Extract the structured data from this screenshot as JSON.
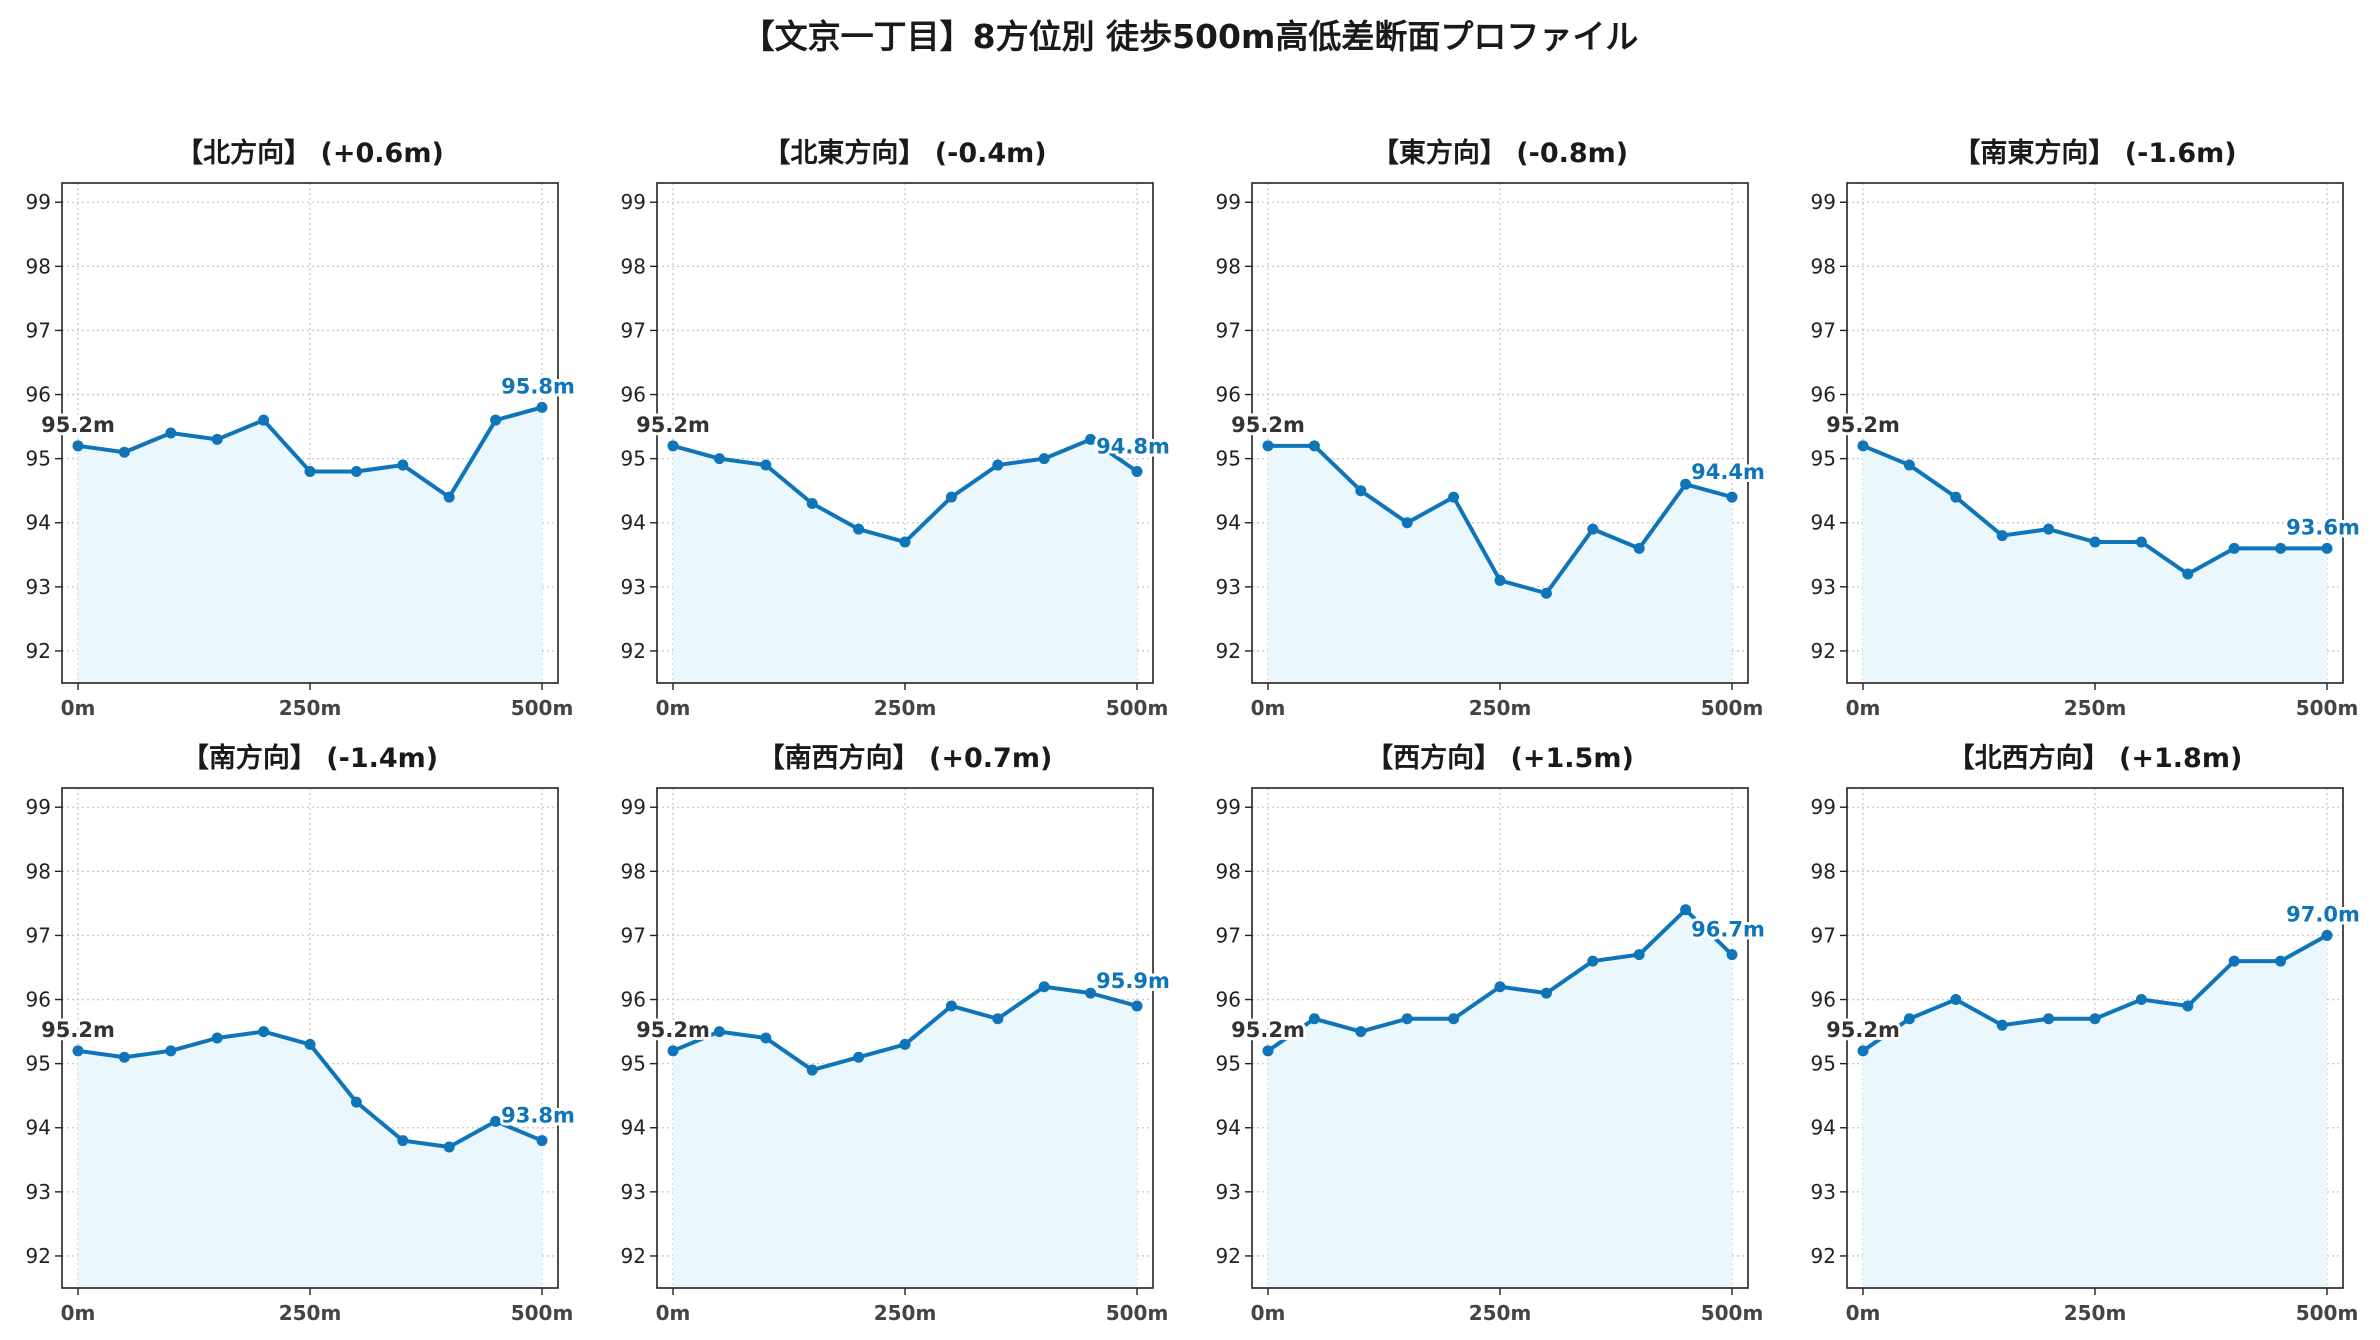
{
  "title": "【文京一丁目】8方位別 徒歩500m高低差断面プロファイル",
  "colors": {
    "line": "#0f75b8",
    "fill": "#eaf7fc",
    "grid": "#c8c8c8",
    "axis": "#222222"
  },
  "chart_data": [
    {
      "type": "area",
      "title": "【北方向】 (+0.6m)",
      "x": [
        0,
        50,
        100,
        150,
        200,
        250,
        300,
        350,
        400,
        450,
        500
      ],
      "values": [
        95.2,
        95.1,
        95.4,
        95.3,
        95.6,
        94.8,
        94.8,
        94.9,
        94.4,
        95.6,
        95.8
      ],
      "xticks": [
        "0m",
        "250m",
        "500m"
      ],
      "ylim": [
        91.5,
        99.3
      ],
      "yticks": [
        92,
        93,
        94,
        95,
        96,
        97,
        98,
        99
      ],
      "start_label": "95.2m",
      "end_label": "95.8m"
    },
    {
      "type": "area",
      "title": "【北東方向】 (-0.4m)",
      "x": [
        0,
        50,
        100,
        150,
        200,
        250,
        300,
        350,
        400,
        450,
        500
      ],
      "values": [
        95.2,
        95.0,
        94.9,
        94.3,
        93.9,
        93.7,
        94.4,
        94.9,
        95.0,
        95.3,
        94.8
      ],
      "xticks": [
        "0m",
        "250m",
        "500m"
      ],
      "ylim": [
        91.5,
        99.3
      ],
      "yticks": [
        92,
        93,
        94,
        95,
        96,
        97,
        98,
        99
      ],
      "start_label": "95.2m",
      "end_label": "94.8m"
    },
    {
      "type": "area",
      "title": "【東方向】 (-0.8m)",
      "x": [
        0,
        50,
        100,
        150,
        200,
        250,
        300,
        350,
        400,
        450,
        500
      ],
      "values": [
        95.2,
        95.2,
        94.5,
        94.0,
        94.4,
        93.1,
        92.9,
        93.9,
        93.6,
        94.6,
        94.4
      ],
      "xticks": [
        "0m",
        "250m",
        "500m"
      ],
      "ylim": [
        91.5,
        99.3
      ],
      "yticks": [
        92,
        93,
        94,
        95,
        96,
        97,
        98,
        99
      ],
      "start_label": "95.2m",
      "end_label": "94.4m"
    },
    {
      "type": "area",
      "title": "【南東方向】 (-1.6m)",
      "x": [
        0,
        50,
        100,
        150,
        200,
        250,
        300,
        350,
        400,
        450,
        500
      ],
      "values": [
        95.2,
        94.9,
        94.4,
        93.8,
        93.9,
        93.7,
        93.7,
        93.2,
        93.6,
        93.6,
        93.6
      ],
      "xticks": [
        "0m",
        "250m",
        "500m"
      ],
      "ylim": [
        91.5,
        99.3
      ],
      "yticks": [
        92,
        93,
        94,
        95,
        96,
        97,
        98,
        99
      ],
      "start_label": "95.2m",
      "end_label": "93.6m"
    },
    {
      "type": "area",
      "title": "【南方向】 (-1.4m)",
      "x": [
        0,
        50,
        100,
        150,
        200,
        250,
        300,
        350,
        400,
        450,
        500
      ],
      "values": [
        95.2,
        95.1,
        95.2,
        95.4,
        95.5,
        95.3,
        94.4,
        93.8,
        93.7,
        94.1,
        93.8
      ],
      "xticks": [
        "0m",
        "250m",
        "500m"
      ],
      "ylim": [
        91.5,
        99.3
      ],
      "yticks": [
        92,
        93,
        94,
        95,
        96,
        97,
        98,
        99
      ],
      "start_label": "95.2m",
      "end_label": "93.8m"
    },
    {
      "type": "area",
      "title": "【南西方向】 (+0.7m)",
      "x": [
        0,
        50,
        100,
        150,
        200,
        250,
        300,
        350,
        400,
        450,
        500
      ],
      "values": [
        95.2,
        95.5,
        95.4,
        94.9,
        95.1,
        95.3,
        95.9,
        95.7,
        96.2,
        96.1,
        95.9
      ],
      "xticks": [
        "0m",
        "250m",
        "500m"
      ],
      "ylim": [
        91.5,
        99.3
      ],
      "yticks": [
        92,
        93,
        94,
        95,
        96,
        97,
        98,
        99
      ],
      "start_label": "95.2m",
      "end_label": "95.9m"
    },
    {
      "type": "area",
      "title": "【西方向】 (+1.5m)",
      "x": [
        0,
        50,
        100,
        150,
        200,
        250,
        300,
        350,
        400,
        450,
        500
      ],
      "values": [
        95.2,
        95.7,
        95.5,
        95.7,
        95.7,
        96.2,
        96.1,
        96.6,
        96.7,
        97.4,
        96.7
      ],
      "xticks": [
        "0m",
        "250m",
        "500m"
      ],
      "ylim": [
        91.5,
        99.3
      ],
      "yticks": [
        92,
        93,
        94,
        95,
        96,
        97,
        98,
        99
      ],
      "start_label": "95.2m",
      "end_label": "96.7m"
    },
    {
      "type": "area",
      "title": "【北西方向】 (+1.8m)",
      "x": [
        0,
        50,
        100,
        150,
        200,
        250,
        300,
        350,
        400,
        450,
        500
      ],
      "values": [
        95.2,
        95.7,
        96.0,
        95.6,
        95.7,
        95.7,
        96.0,
        95.9,
        96.6,
        96.6,
        97.0
      ],
      "xticks": [
        "0m",
        "250m",
        "500m"
      ],
      "ylim": [
        91.5,
        99.3
      ],
      "yticks": [
        92,
        93,
        94,
        95,
        96,
        97,
        98,
        99
      ],
      "start_label": "95.2m",
      "end_label": "97.0m"
    }
  ]
}
